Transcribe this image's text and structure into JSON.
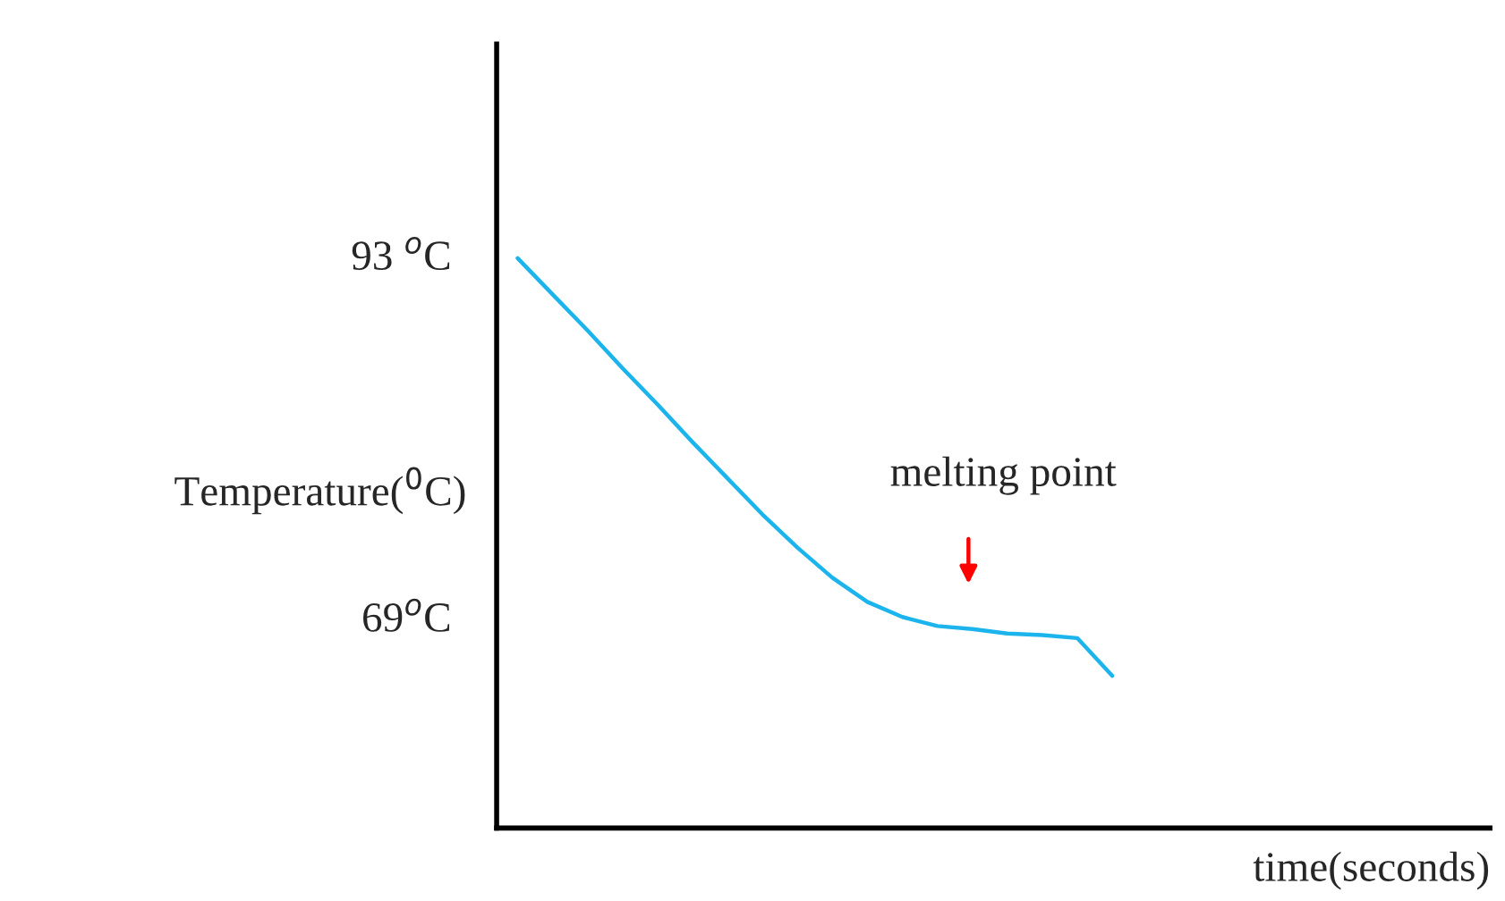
{
  "chart_data": {
    "type": "line",
    "ylabel": "Temperature($^{0}$C)",
    "xlabel": "time(seconds)",
    "categories": [
      null,
      null,
      null,
      null,
      null,
      null,
      null,
      null,
      null,
      null,
      null,
      null,
      null,
      null,
      null,
      null,
      null,
      null
    ],
    "series": [
      {
        "color": "#1cb4ec",
        "values": [
          92.8,
          90.4,
          88.0,
          85.5,
          83.1,
          80.6,
          78.2,
          75.8,
          73.6,
          71.6,
          70.0,
          69.0,
          68.4,
          68.2,
          67.9,
          67.8,
          67.6,
          65.1
        ]
      }
    ],
    "ylim": [
      55,
      107
    ],
    "yticks": [
      {
        "value": 69,
        "label": "69$^{o}$C"
      },
      {
        "value": 93,
        "label": "93 $^{o}$C"
      }
    ],
    "annotations": [
      "melting point"
    ],
    "grid": false,
    "legend": false,
    "marker": "none",
    "line_style": "solid"
  }
}
